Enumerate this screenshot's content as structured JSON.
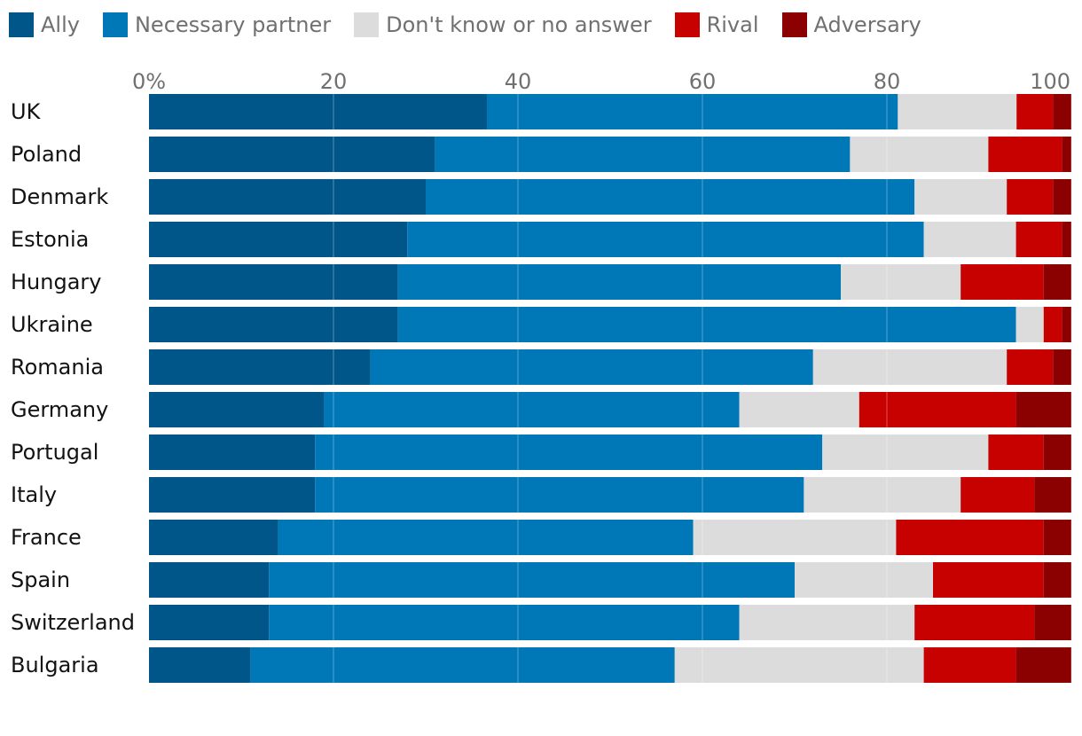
{
  "chart_data": {
    "type": "bar",
    "orientation": "horizontal",
    "stacked": true,
    "title": "",
    "xlabel": "",
    "ylabel": "",
    "xlim": [
      0,
      100
    ],
    "x_ticks": [
      0,
      20,
      40,
      60,
      80,
      100
    ],
    "x_tick_labels": [
      "0%",
      "20",
      "40",
      "60",
      "80",
      "100"
    ],
    "grid": true,
    "legend_position": "top",
    "categories": [
      "UK",
      "Poland",
      "Denmark",
      "Estonia",
      "Hungary",
      "Ukraine",
      "Romania",
      "Germany",
      "Portugal",
      "Italy",
      "France",
      "Spain",
      "Switzerland",
      "Bulgaria"
    ],
    "series": [
      {
        "name": "Ally",
        "color": "#005689",
        "values": [
          37,
          31,
          30,
          28,
          27,
          27,
          24,
          19,
          18,
          18,
          14,
          13,
          13,
          11
        ]
      },
      {
        "name": "Necessary partner",
        "color": "#0077b6",
        "values": [
          45,
          45,
          53,
          56,
          48,
          67,
          48,
          45,
          55,
          53,
          45,
          57,
          51,
          46
        ]
      },
      {
        "name": "Don't know or no answer",
        "color": "#dcdcdc",
        "values": [
          13,
          15,
          10,
          10,
          13,
          3,
          21,
          13,
          18,
          17,
          22,
          15,
          19,
          27
        ]
      },
      {
        "name": "Rival",
        "color": "#c70000",
        "values": [
          4,
          8,
          5,
          5,
          9,
          2,
          5,
          17,
          6,
          8,
          16,
          12,
          13,
          10
        ]
      },
      {
        "name": "Adversary",
        "color": "#8b0000",
        "values": [
          2,
          1,
          2,
          1,
          3,
          1,
          2,
          6,
          3,
          4,
          3,
          3,
          4,
          6
        ]
      }
    ]
  }
}
